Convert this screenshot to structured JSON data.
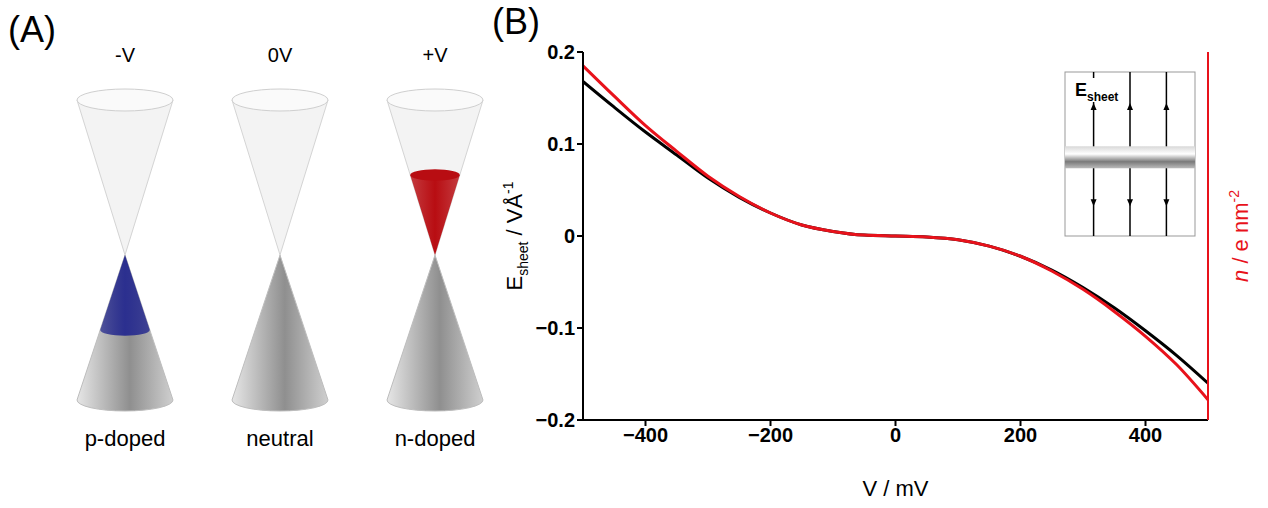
{
  "diagram": {
    "letter": "(A)",
    "cones": [
      {
        "voltage": "-V",
        "label": "p-doped",
        "color": "#2b2f8f"
      },
      {
        "voltage": "0V",
        "label": "neutral"
      },
      {
        "voltage": "+V",
        "label": "n-doped",
        "color": "#b80d12"
      }
    ]
  },
  "chart_data": {
    "type": "line",
    "letter": "(B)",
    "xlabel": "V / mV",
    "ylabel": [
      "E",
      "sheet",
      " / VÅ",
      "-1"
    ],
    "y2label": [
      "n",
      " / e nm",
      "-2"
    ],
    "inset_label": [
      "E",
      "sheet"
    ],
    "x": [
      -500,
      -450,
      -400,
      -350,
      -300,
      -250,
      -200,
      -150,
      -100,
      -50,
      0,
      50,
      100,
      150,
      200,
      250,
      300,
      350,
      400,
      450,
      500
    ],
    "series": [
      {
        "color": "#000000",
        "values": [
          0.168,
          0.14,
          0.113,
          0.088,
          0.063,
          0.042,
          0.025,
          0.012,
          0.005,
          0.001,
          0,
          -0.001,
          -0.004,
          -0.011,
          -0.022,
          -0.037,
          -0.056,
          -0.078,
          -0.103,
          -0.13,
          -0.16
        ]
      },
      {
        "color": "#e8121b",
        "axis": "y2",
        "values": [
          0.185,
          0.152,
          0.12,
          0.092,
          0.065,
          0.043,
          0.025,
          0.012,
          0.005,
          0.001,
          0,
          -0.001,
          -0.004,
          -0.011,
          -0.022,
          -0.038,
          -0.058,
          -0.082,
          -0.109,
          -0.14,
          -0.178
        ]
      }
    ],
    "xlim": [
      -500,
      500
    ],
    "xticks": [
      {
        "value": -400,
        "label": "−400"
      },
      {
        "value": -200,
        "label": "−200"
      },
      0,
      200,
      400
    ],
    "ylim": [
      -0.2,
      0.2
    ],
    "yticks": [
      {
        "value": -0.2,
        "label": "−0.2"
      },
      {
        "value": -0.1,
        "label": "−0.1"
      },
      0,
      0.1,
      0.2
    ],
    "y2lim": [
      -0.2,
      0.2
    ],
    "grid": false
  }
}
